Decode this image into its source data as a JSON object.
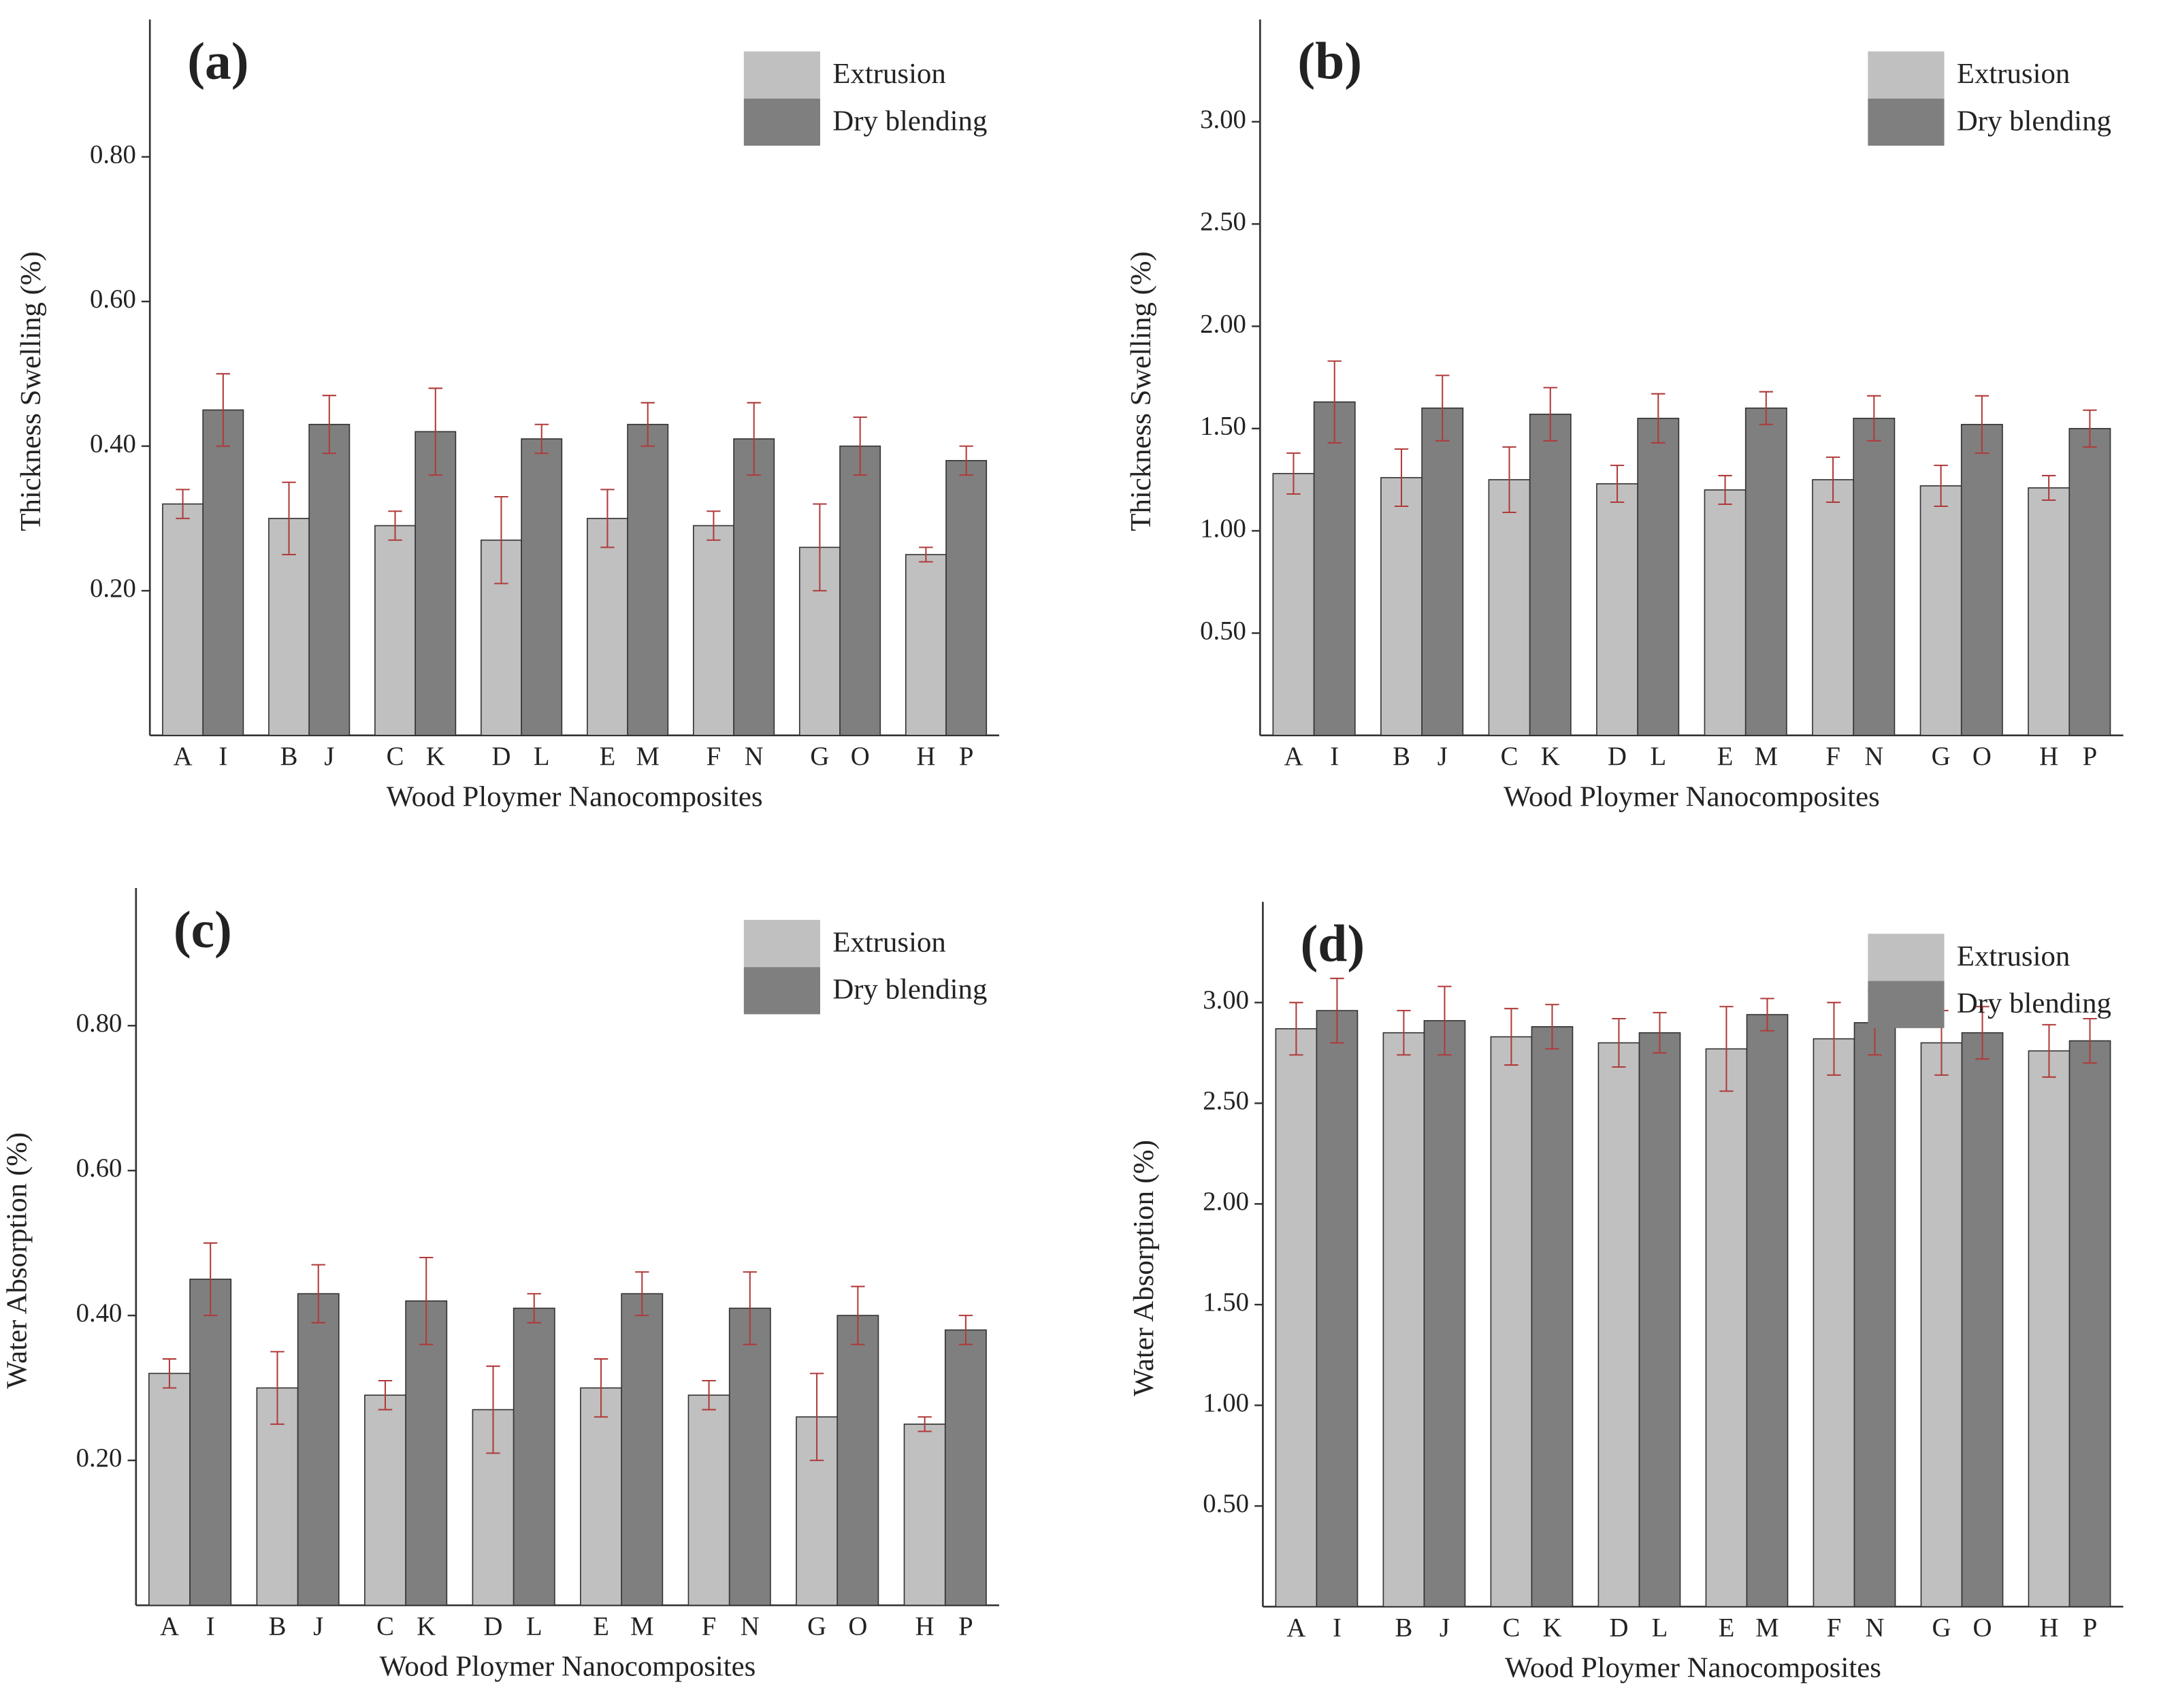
{
  "chart_data": [
    {
      "type": "bar",
      "title": "(a)",
      "x_label": "Wood Ploymer Nanocomposites",
      "y_label": "Thickness Swelling (%)",
      "legend": "upper right",
      "error_color": "#b03a3a",
      "ylim": [
        0,
        0.99
      ],
      "yticks": [
        {
          "value": 0.2,
          "label": "0.20"
        },
        {
          "value": 0.4,
          "label": "0.40"
        },
        {
          "value": 0.6,
          "label": "0.60"
        },
        {
          "value": 0.8,
          "label": "0.80"
        }
      ],
      "series": [
        {
          "name": "Extrusion",
          "color": "#c0c0c0",
          "labels": [
            "A",
            "B",
            "C",
            "D",
            "E",
            "F",
            "G",
            "H"
          ],
          "values": [
            0.32,
            0.3,
            0.29,
            0.27,
            0.3,
            0.29,
            0.26,
            0.25
          ],
          "errors": [
            0.02,
            0.05,
            0.02,
            0.06,
            0.04,
            0.02,
            0.06,
            0.01
          ]
        },
        {
          "name": "Dry blending",
          "color": "#7f7f7f",
          "labels": [
            "I",
            "J",
            "K",
            "L",
            "M",
            "N",
            "O",
            "P"
          ],
          "values": [
            0.45,
            0.43,
            0.42,
            0.41,
            0.43,
            0.41,
            0.4,
            0.38
          ],
          "errors": [
            0.05,
            0.04,
            0.06,
            0.02,
            0.03,
            0.05,
            0.04,
            0.02
          ]
        }
      ]
    },
    {
      "type": "bar",
      "title": "(b)",
      "x_label": "Wood Ploymer Nanocomposites",
      "y_label": "Thickness Swelling (%)",
      "legend": "upper right",
      "error_color": "#b03a3a",
      "ylim": [
        0,
        3.5
      ],
      "yticks": [
        {
          "value": 0.5,
          "label": "0.50"
        },
        {
          "value": 1,
          "label": "1.00"
        },
        {
          "value": 1.5,
          "label": "1.50"
        },
        {
          "value": 2,
          "label": "2.00"
        },
        {
          "value": 2.5,
          "label": "2.50"
        },
        {
          "value": 3,
          "label": "3.00"
        }
      ],
      "series": [
        {
          "name": "Extrusion",
          "color": "#c0c0c0",
          "labels": [
            "A",
            "B",
            "C",
            "D",
            "E",
            "F",
            "G",
            "H"
          ],
          "values": [
            1.28,
            1.26,
            1.25,
            1.23,
            1.2,
            1.25,
            1.22,
            1.21
          ],
          "errors": [
            0.1,
            0.14,
            0.16,
            0.09,
            0.07,
            0.11,
            0.1,
            0.06
          ]
        },
        {
          "name": "Dry blending",
          "color": "#7f7f7f",
          "labels": [
            "I",
            "J",
            "K",
            "L",
            "M",
            "N",
            "O",
            "P"
          ],
          "values": [
            1.63,
            1.6,
            1.57,
            1.55,
            1.6,
            1.55,
            1.52,
            1.5
          ],
          "errors": [
            0.2,
            0.16,
            0.13,
            0.12,
            0.08,
            0.11,
            0.14,
            0.09
          ]
        }
      ]
    },
    {
      "type": "bar",
      "title": "(c)",
      "x_label": "Wood Ploymer Nanocomposites",
      "y_label": "Water Absorption (%)",
      "legend": "upper right",
      "error_color": "#b03a3a",
      "ylim": [
        0,
        0.99
      ],
      "yticks": [
        {
          "value": 0.2,
          "label": "0.20"
        },
        {
          "value": 0.4,
          "label": "0.40"
        },
        {
          "value": 0.6,
          "label": "0.60"
        },
        {
          "value": 0.8,
          "label": "0.80"
        }
      ],
      "series": [
        {
          "name": "Extrusion",
          "color": "#c0c0c0",
          "labels": [
            "A",
            "B",
            "C",
            "D",
            "E",
            "F",
            "G",
            "H"
          ],
          "values": [
            0.32,
            0.3,
            0.29,
            0.27,
            0.3,
            0.29,
            0.26,
            0.25
          ],
          "errors": [
            0.02,
            0.05,
            0.02,
            0.06,
            0.04,
            0.02,
            0.06,
            0.01
          ]
        },
        {
          "name": "Dry blending",
          "color": "#7f7f7f",
          "labels": [
            "I",
            "J",
            "K",
            "L",
            "M",
            "N",
            "O",
            "P"
          ],
          "values": [
            0.45,
            0.43,
            0.42,
            0.41,
            0.43,
            0.41,
            0.4,
            0.38
          ],
          "errors": [
            0.05,
            0.04,
            0.06,
            0.02,
            0.03,
            0.05,
            0.04,
            0.02
          ]
        }
      ]
    },
    {
      "type": "bar",
      "title": "(d)",
      "x_label": "Wood Ploymer Nanocomposites",
      "y_label": "Water Absorption (%)",
      "legend": "upper right",
      "error_color": "#b03a3a",
      "ylim": [
        0,
        3.5
      ],
      "yticks": [
        {
          "value": 0.5,
          "label": "0.50"
        },
        {
          "value": 1,
          "label": "1.00"
        },
        {
          "value": 1.5,
          "label": "1.50"
        },
        {
          "value": 2,
          "label": "2.00"
        },
        {
          "value": 2.5,
          "label": "2.50"
        },
        {
          "value": 3,
          "label": "3.00"
        }
      ],
      "series": [
        {
          "name": "Extrusion",
          "color": "#c0c0c0",
          "labels": [
            "A",
            "B",
            "C",
            "D",
            "E",
            "F",
            "G",
            "H"
          ],
          "values": [
            2.87,
            2.85,
            2.83,
            2.8,
            2.77,
            2.82,
            2.8,
            2.76
          ],
          "errors": [
            0.13,
            0.11,
            0.14,
            0.12,
            0.21,
            0.18,
            0.16,
            0.13
          ]
        },
        {
          "name": "Dry blending",
          "color": "#7f7f7f",
          "labels": [
            "I",
            "J",
            "K",
            "L",
            "M",
            "N",
            "O",
            "P"
          ],
          "values": [
            2.96,
            2.91,
            2.88,
            2.85,
            2.94,
            2.9,
            2.85,
            2.81
          ],
          "errors": [
            0.16,
            0.17,
            0.11,
            0.1,
            0.08,
            0.16,
            0.13,
            0.11
          ]
        }
      ]
    }
  ]
}
